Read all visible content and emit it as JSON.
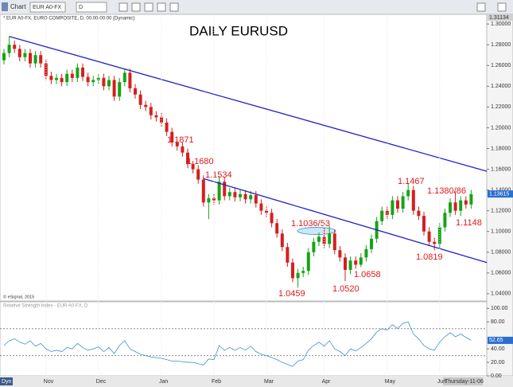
{
  "ui": {
    "toolbar": {
      "title": "Chart",
      "symbol": "EUR A0-FX",
      "interval": "D"
    },
    "x_axis": {
      "start_label": "Dyn",
      "cursor_label": "Thursday-11-06"
    }
  },
  "chart_data": [
    {
      "type": "candlestick",
      "title": "DAILY EURUSD",
      "subtitle": "* EUR A0-FX, EURO COMPOSITE, D, 00:00-00:00 (Dynamic)",
      "watermark": "© eSignal, 2015",
      "categories": [
        null,
        null,
        null,
        null,
        null,
        null,
        null,
        null,
        "Nov",
        null,
        null,
        null,
        null,
        null,
        null,
        null,
        null,
        null,
        "Dec",
        null,
        null,
        null,
        null,
        null,
        null,
        null,
        null,
        null,
        null,
        null,
        "Jan",
        null,
        null,
        null,
        null,
        null,
        null,
        null,
        null,
        null,
        "Feb",
        null,
        null,
        null,
        null,
        null,
        null,
        null,
        null,
        null,
        "Mar",
        null,
        null,
        null,
        null,
        null,
        null,
        null,
        null,
        null,
        null,
        "Apr",
        null,
        null,
        null,
        null,
        null,
        null,
        null,
        null,
        null,
        null,
        null,
        "May",
        null,
        null,
        null,
        null,
        null,
        null,
        null,
        null,
        null,
        "Jun",
        null,
        null,
        null,
        null,
        null,
        null
      ],
      "open": [
        1.265,
        1.272,
        1.28,
        1.276,
        1.268,
        1.272,
        1.262,
        1.27,
        1.262,
        1.25,
        1.246,
        1.248,
        1.244,
        1.252,
        1.248,
        1.258,
        1.249,
        1.244,
        1.246,
        1.248,
        1.24,
        1.246,
        1.23,
        1.244,
        1.253,
        1.238,
        1.232,
        1.222,
        1.22,
        1.212,
        1.21,
        1.205,
        1.196,
        1.186,
        1.182,
        1.176,
        1.165,
        1.16,
        1.15,
        1.128,
        1.132,
        1.13,
        1.148,
        1.134,
        1.138,
        1.133,
        1.136,
        1.131,
        1.135,
        1.127,
        1.12,
        1.118,
        1.108,
        1.098,
        1.085,
        1.07,
        1.055,
        1.06,
        1.062,
        1.08,
        1.09,
        1.095,
        1.088,
        1.098,
        1.082,
        1.075,
        1.063,
        1.072,
        1.068,
        1.075,
        1.083,
        1.093,
        1.11,
        1.12,
        1.116,
        1.13,
        1.122,
        1.134,
        1.14,
        1.12,
        1.115,
        1.1,
        1.09,
        1.088,
        1.104,
        1.118,
        1.128,
        1.12,
        1.13,
        1.126
      ],
      "high": [
        1.276,
        1.288,
        1.284,
        1.28,
        1.276,
        1.276,
        1.274,
        1.274,
        1.266,
        1.254,
        1.252,
        1.252,
        1.256,
        1.256,
        1.262,
        1.262,
        1.253,
        1.25,
        1.252,
        1.252,
        1.25,
        1.25,
        1.248,
        1.257,
        1.257,
        1.242,
        1.236,
        1.226,
        1.224,
        1.216,
        1.214,
        1.209,
        1.2,
        1.1871,
        1.186,
        1.18,
        1.168,
        1.164,
        1.154,
        1.136,
        1.136,
        1.1534,
        1.152,
        1.142,
        1.142,
        1.14,
        1.14,
        1.139,
        1.139,
        1.131,
        1.124,
        1.122,
        1.112,
        1.102,
        1.089,
        1.074,
        1.064,
        1.066,
        1.084,
        1.094,
        1.099,
        1.1036,
        1.1053,
        1.102,
        1.086,
        1.079,
        1.076,
        1.076,
        1.079,
        1.087,
        1.097,
        1.114,
        1.124,
        1.124,
        1.134,
        1.134,
        1.138,
        1.1467,
        1.144,
        1.124,
        1.119,
        1.104,
        1.094,
        1.108,
        1.122,
        1.132,
        1.1386,
        1.134,
        1.134,
        1.14
      ],
      "low": [
        1.261,
        1.268,
        1.272,
        1.264,
        1.264,
        1.258,
        1.258,
        1.258,
        1.246,
        1.242,
        1.242,
        1.24,
        1.24,
        1.244,
        1.244,
        1.245,
        1.24,
        1.24,
        1.242,
        1.236,
        1.236,
        1.226,
        1.226,
        1.24,
        1.234,
        1.228,
        1.218,
        1.216,
        1.208,
        1.206,
        1.201,
        1.192,
        1.182,
        1.178,
        1.172,
        1.161,
        1.156,
        1.146,
        1.124,
        1.112,
        1.126,
        1.126,
        1.13,
        1.13,
        1.129,
        1.129,
        1.127,
        1.127,
        1.123,
        1.116,
        1.114,
        1.104,
        1.094,
        1.081,
        1.066,
        1.051,
        1.0459,
        1.056,
        1.058,
        1.076,
        1.086,
        1.084,
        1.084,
        1.078,
        1.071,
        1.052,
        1.059,
        1.064,
        1.0658,
        1.071,
        1.079,
        1.089,
        1.106,
        1.112,
        1.112,
        1.118,
        1.118,
        1.13,
        1.116,
        1.111,
        1.096,
        1.086,
        1.0819,
        1.084,
        1.1,
        1.114,
        1.116,
        1.1148,
        1.122,
        1.122
      ],
      "close": [
        1.272,
        1.28,
        1.276,
        1.268,
        1.272,
        1.262,
        1.27,
        1.262,
        1.25,
        1.246,
        1.248,
        1.244,
        1.252,
        1.248,
        1.258,
        1.249,
        1.244,
        1.246,
        1.248,
        1.24,
        1.246,
        1.23,
        1.244,
        1.253,
        1.238,
        1.232,
        1.222,
        1.22,
        1.212,
        1.21,
        1.205,
        1.196,
        1.186,
        1.182,
        1.176,
        1.165,
        1.16,
        1.15,
        1.128,
        1.132,
        1.13,
        1.148,
        1.134,
        1.138,
        1.133,
        1.136,
        1.131,
        1.135,
        1.127,
        1.12,
        1.118,
        1.108,
        1.098,
        1.085,
        1.07,
        1.055,
        1.06,
        1.062,
        1.08,
        1.09,
        1.095,
        1.088,
        1.098,
        1.082,
        1.075,
        1.063,
        1.072,
        1.068,
        1.075,
        1.083,
        1.093,
        1.11,
        1.12,
        1.116,
        1.13,
        1.122,
        1.134,
        1.14,
        1.12,
        1.115,
        1.1,
        1.09,
        1.088,
        1.104,
        1.118,
        1.128,
        1.12,
        1.13,
        1.126,
        1.136
      ],
      "up_color": "#17a317",
      "down_color": "#d41f1f",
      "ylim": [
        1.033,
        1.3093
      ],
      "yticks": [
        {
          "value": 1.04,
          "label": "1.04000"
        },
        {
          "value": 1.06,
          "label": "1.06000"
        },
        {
          "value": 1.08,
          "label": "1.08000"
        },
        {
          "value": 1.1,
          "label": "1.10000"
        },
        {
          "value": 1.12,
          "label": "1.12000"
        },
        {
          "value": 1.14,
          "label": "1.14000"
        },
        {
          "value": 1.16,
          "label": "1.16000"
        },
        {
          "value": 1.18,
          "label": "1.18000"
        },
        {
          "value": 1.2,
          "label": "1.20000"
        },
        {
          "value": 1.22,
          "label": "1.22000"
        },
        {
          "value": 1.24,
          "label": "1.24000"
        },
        {
          "value": 1.26,
          "label": "1.26000"
        },
        {
          "value": 1.28,
          "label": "1.28000"
        },
        {
          "value": 1.3,
          "label": "1.30000"
        }
      ],
      "top_label": {
        "value": 1.31134,
        "label": "1.31134"
      },
      "last_price": {
        "value": 1.13615,
        "label": "1.13615"
      },
      "trendlines": [
        {
          "from": [
            1,
            1.288
          ],
          "to": [
            92,
            1.158
          ],
          "color": "#2020c8"
        },
        {
          "from": [
            38,
            1.151
          ],
          "to": [
            92,
            1.07
          ],
          "color": "#2020c8"
        }
      ],
      "annotations": [
        {
          "text": "1.1871"
        },
        {
          "text": "1.1680"
        },
        {
          "text": "1.1534"
        },
        {
          "text": "1.1036/53"
        },
        {
          "text": "1.0459"
        },
        {
          "text": "1.0520"
        },
        {
          "text": "1.0658"
        },
        {
          "text": "1.1467"
        },
        {
          "text": "1.1380/86"
        },
        {
          "text": "1.1148"
        },
        {
          "text": "1.0819"
        }
      ]
    },
    {
      "type": "line",
      "title": "Relative Strength Index - EUR A0-FX, D",
      "color": "#3d8ed8",
      "values": [
        45,
        52,
        55,
        50,
        47,
        52,
        44,
        48,
        40,
        36,
        38,
        36,
        42,
        40,
        48,
        42,
        38,
        40,
        43,
        36,
        42,
        33,
        45,
        52,
        40,
        36,
        32,
        30,
        28,
        27,
        26,
        24,
        22,
        22,
        21,
        20,
        20,
        18,
        16,
        25,
        24,
        45,
        38,
        42,
        38,
        42,
        38,
        44,
        36,
        32,
        30,
        27,
        24,
        20,
        17,
        14,
        22,
        24,
        38,
        45,
        50,
        44,
        52,
        40,
        36,
        30,
        40,
        37,
        42,
        48,
        55,
        65,
        70,
        68,
        76,
        70,
        78,
        80,
        62,
        55,
        45,
        40,
        38,
        50,
        58,
        64,
        58,
        62,
        57,
        52.65
      ],
      "ylim": [
        0,
        109.8
      ],
      "yticks": [
        {
          "value": 0,
          "label": "0.00"
        },
        {
          "value": 20,
          "label": "20.00"
        },
        {
          "value": 40,
          "label": "40.00"
        },
        {
          "value": 80,
          "label": "80.00"
        },
        {
          "value": 100,
          "label": "100.00"
        }
      ],
      "levels": [
        30,
        70
      ],
      "last_value": {
        "value": 52.65,
        "label": "52.65"
      }
    }
  ]
}
